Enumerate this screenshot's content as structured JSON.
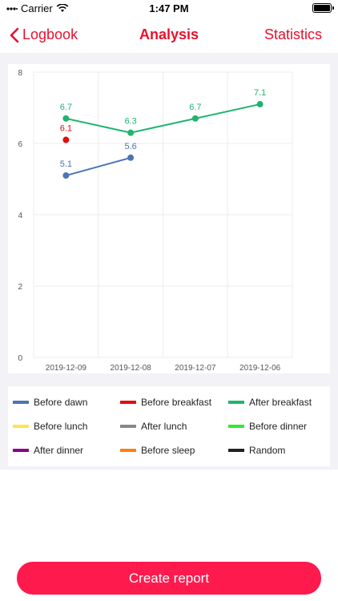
{
  "status_bar": {
    "carrier": "Carrier",
    "time": "1:47 PM"
  },
  "nav": {
    "back_label": "Logbook",
    "title": "Analysis",
    "right_label": "Statistics"
  },
  "chart_data": {
    "type": "line",
    "categories": [
      "2019-12-09",
      "2019-12-08",
      "2019-12-07",
      "2019-12-06"
    ],
    "ylim": [
      0,
      8
    ],
    "yticks": [
      0,
      2,
      4,
      6,
      8
    ],
    "grid": true,
    "series": [
      {
        "name": "Before dawn",
        "color": "#4a74b4",
        "values": [
          5.1,
          5.6,
          null,
          null
        ]
      },
      {
        "name": "Before breakfast",
        "color": "#e30d0d",
        "values": [
          6.1,
          null,
          null,
          null
        ]
      },
      {
        "name": "After breakfast",
        "color": "#1fb46f",
        "values": [
          6.7,
          6.3,
          6.7,
          7.1
        ]
      }
    ]
  },
  "legend": [
    {
      "label": "Before dawn",
      "color": "#4a74b4"
    },
    {
      "label": "Before breakfast",
      "color": "#e30d0d"
    },
    {
      "label": "After breakfast",
      "color": "#1fb46f"
    },
    {
      "label": "Before lunch",
      "color": "#ffe34d"
    },
    {
      "label": "After lunch",
      "color": "#888888"
    },
    {
      "label": "Before dinner",
      "color": "#35e635"
    },
    {
      "label": "After dinner",
      "color": "#8b008b"
    },
    {
      "label": "Before sleep",
      "color": "#ff7f0e"
    },
    {
      "label": "Random",
      "color": "#222222"
    }
  ],
  "cta": {
    "label": "Create report"
  }
}
